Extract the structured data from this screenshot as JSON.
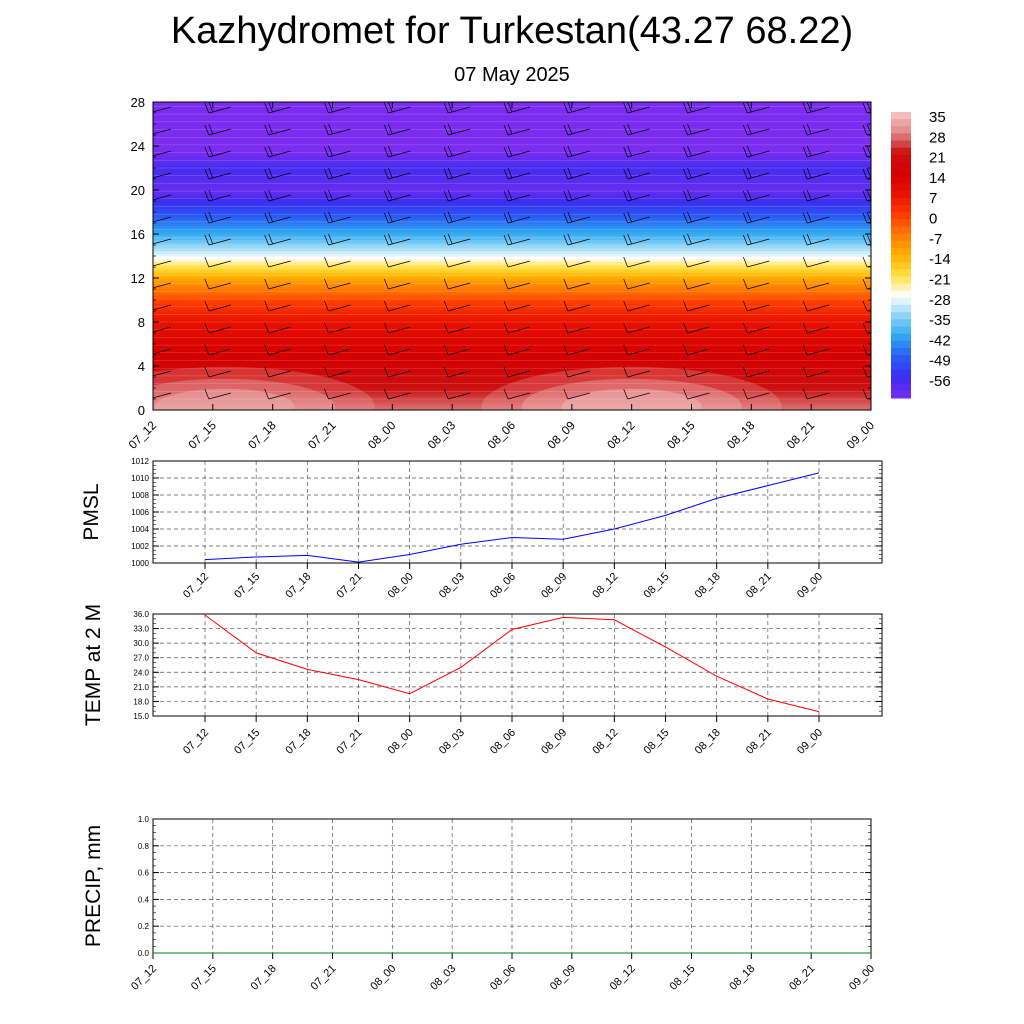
{
  "header": {
    "title": "Kazhydromet for Turkestan(43.27 68.22)",
    "date": "07 May 2025"
  },
  "chart_data": [
    {
      "type": "heatmap",
      "x_labels": [
        "07_12",
        "07_15",
        "07_18",
        "07_21",
        "08_00",
        "08_03",
        "08_06",
        "08_09",
        "08_12",
        "08_15",
        "08_18",
        "08_21",
        "09_00"
      ],
      "y_ticks": [
        0,
        4,
        8,
        12,
        16,
        20,
        24,
        28
      ],
      "ylim": [
        0,
        28
      ],
      "colorbar_labels": [
        "35",
        "28",
        "21",
        "14",
        "7",
        "0",
        "-7",
        "-14",
        "-21",
        "-28",
        "-35",
        "-42",
        "-49",
        "-56"
      ],
      "colorbar_range": [
        -60,
        38
      ],
      "temperature_profile": [
        {
          "height": 0,
          "value": 30
        },
        {
          "height": 2,
          "value": 24
        },
        {
          "height": 4,
          "value": 19
        },
        {
          "height": 6,
          "value": 15
        },
        {
          "height": 8,
          "value": 10
        },
        {
          "height": 10,
          "value": 2
        },
        {
          "height": 11,
          "value": -4
        },
        {
          "height": 12,
          "value": -10
        },
        {
          "height": 13,
          "value": -18
        },
        {
          "height": 14,
          "value": -26
        },
        {
          "height": 16,
          "value": -38
        },
        {
          "height": 18,
          "value": -48
        },
        {
          "height": 20,
          "value": -58
        },
        {
          "height": 22,
          "value": -54
        },
        {
          "height": 24,
          "value": -62
        },
        {
          "height": 28,
          "value": -64
        }
      ],
      "surface_warm_cores": [
        {
          "x_index": 1.2,
          "height": 1.2,
          "value": 36
        },
        {
          "x_index": 8.0,
          "height": 1.2,
          "value": 37
        }
      ],
      "wind_barb_heights": [
        1,
        3,
        5,
        7,
        9,
        11,
        13,
        15,
        17,
        19,
        21,
        23,
        25,
        27
      ],
      "colors": {
        "scale": [
          "#7b2cf0",
          "#3a2df0",
          "#2a5cf5",
          "#2ea6f2",
          "#8ad3f5",
          "#ffffff",
          "#ffe040",
          "#ffb000",
          "#ff7a00",
          "#ff3a00",
          "#e81000",
          "#d40000",
          "#cc1010",
          "#e08888",
          "#f5c8c8"
        ]
      }
    },
    {
      "type": "line",
      "ylabel": "PMSL",
      "x_labels": [
        "07_12",
        "07_15",
        "07_18",
        "07_21",
        "08_00",
        "08_03",
        "08_06",
        "08_09",
        "08_12",
        "08_15",
        "08_18",
        "08_21",
        "09_00"
      ],
      "y_ticks": [
        "1000",
        "1002",
        "1004",
        "1006",
        "1008",
        "1010",
        "1012"
      ],
      "ylim": [
        1000,
        1012
      ],
      "values": [
        1000.4,
        1000.7,
        1000.9,
        1000.1,
        1001.0,
        1002.2,
        1003.0,
        1002.8,
        1004.0,
        1005.6,
        1007.6,
        1009.1,
        1010.6
      ],
      "color": "#0000ff"
    },
    {
      "type": "line",
      "ylabel": "TEMP at 2 M",
      "x_labels": [
        "07_12",
        "07_15",
        "07_18",
        "07_21",
        "08_00",
        "08_03",
        "08_06",
        "08_09",
        "08_12",
        "08_15",
        "08_18",
        "08_21",
        "09_00"
      ],
      "y_ticks": [
        "15.0",
        "18.0",
        "21.0",
        "24.0",
        "27.0",
        "30.0",
        "33.0",
        "36.0"
      ],
      "ylim": [
        15,
        36
      ],
      "values": [
        35.8,
        28.0,
        24.6,
        22.5,
        19.6,
        25.0,
        32.8,
        35.3,
        34.8,
        29.2,
        23.2,
        18.5,
        15.9
      ],
      "color": "#ff0000"
    },
    {
      "type": "line",
      "ylabel": "PRECIP, mm",
      "x_labels": [
        "07_12",
        "07_15",
        "07_18",
        "07_21",
        "08_00",
        "08_03",
        "08_06",
        "08_09",
        "08_12",
        "08_15",
        "08_18",
        "08_21",
        "09_00"
      ],
      "y_ticks": [
        "0.0",
        "0.2",
        "0.4",
        "0.6",
        "0.8",
        "1.0"
      ],
      "ylim": [
        0,
        1
      ],
      "values": [
        0,
        0,
        0,
        0,
        0,
        0,
        0,
        0,
        0,
        0,
        0,
        0,
        0
      ],
      "color": "#008000"
    }
  ]
}
